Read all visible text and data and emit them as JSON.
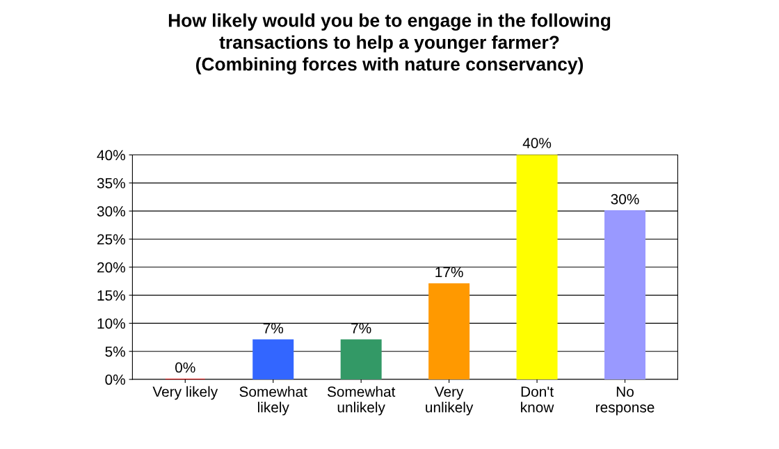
{
  "chart_data": {
    "type": "bar",
    "title": "How likely would you be to engage in the following\ntransactions to help a younger farmer?\n(Combining forces with nature conservancy)",
    "categories": [
      "Very likely",
      "Somewhat\nlikely",
      "Somewhat\nunlikely",
      "Very\nunlikely",
      "Don't\nknow",
      "No\nresponse"
    ],
    "values": [
      0,
      7,
      7,
      17,
      40,
      30
    ],
    "colors": [
      "#cc0000",
      "#3366ff",
      "#339966",
      "#ff9900",
      "#ffff00",
      "#9999ff"
    ],
    "value_labels": [
      "0%",
      "7%",
      "7%",
      "17%",
      "40%",
      "30%"
    ],
    "ylim": [
      0,
      40
    ],
    "yticks": [
      {
        "value": 0,
        "label": "0%"
      },
      {
        "value": 5,
        "label": "5%"
      },
      {
        "value": 10,
        "label": "10%"
      },
      {
        "value": 15,
        "label": "15%"
      },
      {
        "value": 20,
        "label": "20%"
      },
      {
        "value": 25,
        "label": "25%"
      },
      {
        "value": 30,
        "label": "30%"
      },
      {
        "value": 35,
        "label": "35%"
      },
      {
        "value": 40,
        "label": "40%"
      }
    ],
    "grid": "y",
    "legend": false
  }
}
